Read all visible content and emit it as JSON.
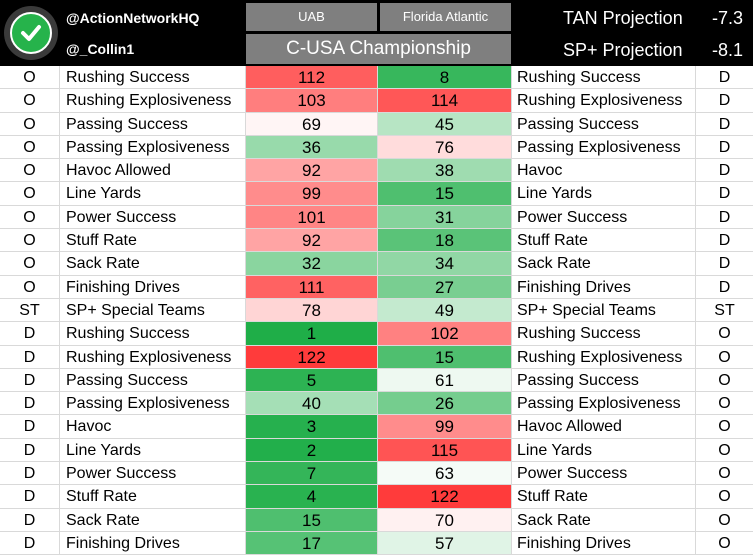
{
  "header": {
    "handle_1": "@ActionNetworkHQ",
    "handle_2": "@_Collin1",
    "team_1": "UAB",
    "team_2": "Florida Atlantic",
    "game_title": "C-USA Championship",
    "projection_1_label": "TAN Projection",
    "projection_1_value": "-7.3",
    "projection_2_label": "SP+ Projection",
    "projection_2_value": "-8.1"
  },
  "colors": {
    "header_bg": "#000000",
    "header_box_bg": "#7f7f7f",
    "logo_green": "#26b34b",
    "rank_best": "#1fae48",
    "rank_mid": "#ffffff",
    "rank_worst": "#ff1f1f"
  },
  "rows": [
    {
      "side": "O",
      "stat": "Rushing Success",
      "uab": 112,
      "fau": 8,
      "stat2": "Rushing Success",
      "side2": "D"
    },
    {
      "side": "O",
      "stat": "Rushing Explosiveness",
      "uab": 103,
      "fau": 114,
      "stat2": "Rushing Explosiveness",
      "side2": "D"
    },
    {
      "side": "O",
      "stat": "Passing Success",
      "uab": 69,
      "fau": 45,
      "stat2": "Passing Success",
      "side2": "D"
    },
    {
      "side": "O",
      "stat": "Passing Explosiveness",
      "uab": 36,
      "fau": 76,
      "stat2": "Passing Explosiveness",
      "side2": "D"
    },
    {
      "side": "O",
      "stat": "Havoc Allowed",
      "uab": 92,
      "fau": 38,
      "stat2": "Havoc",
      "side2": "D"
    },
    {
      "side": "O",
      "stat": "Line Yards",
      "uab": 99,
      "fau": 15,
      "stat2": "Line Yards",
      "side2": "D"
    },
    {
      "side": "O",
      "stat": "Power Success",
      "uab": 101,
      "fau": 31,
      "stat2": "Power Success",
      "side2": "D"
    },
    {
      "side": "O",
      "stat": "Stuff Rate",
      "uab": 92,
      "fau": 18,
      "stat2": "Stuff Rate",
      "side2": "D"
    },
    {
      "side": "O",
      "stat": "Sack Rate",
      "uab": 32,
      "fau": 34,
      "stat2": "Sack Rate",
      "side2": "D"
    },
    {
      "side": "O",
      "stat": "Finishing Drives",
      "uab": 111,
      "fau": 27,
      "stat2": "Finishing Drives",
      "side2": "D"
    },
    {
      "side": "ST",
      "stat": "SP+ Special Teams",
      "uab": 78,
      "fau": 49,
      "stat2": "SP+ Special Teams",
      "side2": "ST"
    },
    {
      "side": "D",
      "stat": "Rushing Success",
      "uab": 1,
      "fau": 102,
      "stat2": "Rushing Success",
      "side2": "O"
    },
    {
      "side": "D",
      "stat": "Rushing Explosiveness",
      "uab": 122,
      "fau": 15,
      "stat2": "Rushing Explosiveness",
      "side2": "O"
    },
    {
      "side": "D",
      "stat": "Passing Success",
      "uab": 5,
      "fau": 61,
      "stat2": "Passing Success",
      "side2": "O"
    },
    {
      "side": "D",
      "stat": "Passing Explosiveness",
      "uab": 40,
      "fau": 26,
      "stat2": "Passing Explosiveness",
      "side2": "O"
    },
    {
      "side": "D",
      "stat": "Havoc",
      "uab": 3,
      "fau": 99,
      "stat2": "Havoc Allowed",
      "side2": "O"
    },
    {
      "side": "D",
      "stat": "Line Yards",
      "uab": 2,
      "fau": 115,
      "stat2": "Line Yards",
      "side2": "O"
    },
    {
      "side": "D",
      "stat": "Power Success",
      "uab": 7,
      "fau": 63,
      "stat2": "Power Success",
      "side2": "O"
    },
    {
      "side": "D",
      "stat": "Stuff Rate",
      "uab": 4,
      "fau": 122,
      "stat2": "Stuff Rate",
      "side2": "O"
    },
    {
      "side": "D",
      "stat": "Sack Rate",
      "uab": 15,
      "fau": 70,
      "stat2": "Sack Rate",
      "side2": "O"
    },
    {
      "side": "D",
      "stat": "Finishing Drives",
      "uab": 17,
      "fau": 57,
      "stat2": "Finishing Drives",
      "side2": "O"
    }
  ]
}
